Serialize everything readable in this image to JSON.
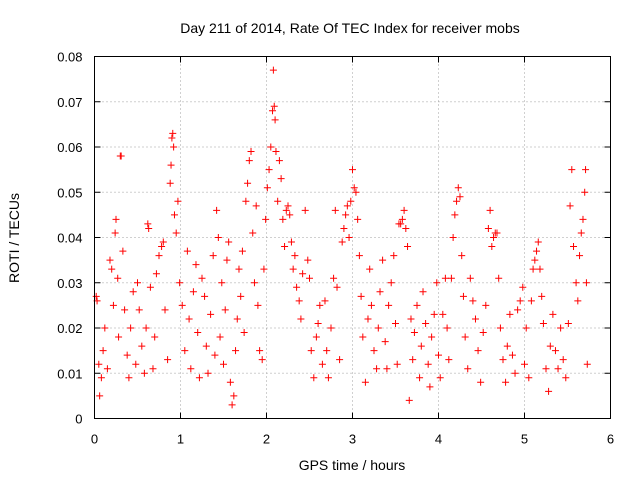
{
  "chart_data": {
    "type": "scatter",
    "title": "Day 211 of 2014, Rate Of TEC Index for receiver mobs",
    "xlabel": "GPS time / hours",
    "ylabel": "ROTI / TECUs",
    "xlim": [
      0,
      6
    ],
    "ylim": [
      0,
      0.08
    ],
    "xticks": [
      0,
      1,
      2,
      3,
      4,
      5,
      6
    ],
    "xtick_labels": [
      "0",
      "1",
      "2",
      "3",
      "4",
      "5",
      "6"
    ],
    "yticks": [
      0,
      0.01,
      0.02,
      0.03,
      0.04,
      0.05,
      0.06,
      0.07,
      0.08
    ],
    "ytick_labels": [
      "0",
      "0.01",
      "0.02",
      "0.03",
      "0.04",
      "0.05",
      "0.06",
      "0.07",
      "0.08"
    ],
    "grid": true,
    "marker": "+",
    "color": "#ff0000",
    "series": [
      {
        "name": "ROTI",
        "points": [
          [
            0.02,
            0.027
          ],
          [
            0.03,
            0.026
          ],
          [
            0.05,
            0.012
          ],
          [
            0.06,
            0.005
          ],
          [
            0.08,
            0.009
          ],
          [
            0.1,
            0.015
          ],
          [
            0.12,
            0.02
          ],
          [
            0.15,
            0.011
          ],
          [
            0.18,
            0.035
          ],
          [
            0.2,
            0.033
          ],
          [
            0.22,
            0.025
          ],
          [
            0.24,
            0.041
          ],
          [
            0.25,
            0.044
          ],
          [
            0.27,
            0.031
          ],
          [
            0.28,
            0.018
          ],
          [
            0.3,
            0.058
          ],
          [
            0.31,
            0.058
          ],
          [
            0.33,
            0.037
          ],
          [
            0.35,
            0.024
          ],
          [
            0.38,
            0.014
          ],
          [
            0.4,
            0.009
          ],
          [
            0.42,
            0.02
          ],
          [
            0.45,
            0.028
          ],
          [
            0.48,
            0.012
          ],
          [
            0.5,
            0.03
          ],
          [
            0.52,
            0.024
          ],
          [
            0.55,
            0.016
          ],
          [
            0.58,
            0.01
          ],
          [
            0.6,
            0.02
          ],
          [
            0.62,
            0.043
          ],
          [
            0.63,
            0.042
          ],
          [
            0.65,
            0.029
          ],
          [
            0.68,
            0.011
          ],
          [
            0.7,
            0.018
          ],
          [
            0.72,
            0.032
          ],
          [
            0.75,
            0.036
          ],
          [
            0.78,
            0.038
          ],
          [
            0.8,
            0.039
          ],
          [
            0.82,
            0.024
          ],
          [
            0.85,
            0.013
          ],
          [
            0.88,
            0.052
          ],
          [
            0.89,
            0.056
          ],
          [
            0.9,
            0.062
          ],
          [
            0.91,
            0.063
          ],
          [
            0.92,
            0.06
          ],
          [
            0.93,
            0.045
          ],
          [
            0.95,
            0.041
          ],
          [
            0.97,
            0.048
          ],
          [
            0.99,
            0.03
          ],
          [
            1.02,
            0.025
          ],
          [
            1.05,
            0.015
          ],
          [
            1.08,
            0.037
          ],
          [
            1.1,
            0.022
          ],
          [
            1.12,
            0.011
          ],
          [
            1.15,
            0.028
          ],
          [
            1.18,
            0.034
          ],
          [
            1.2,
            0.019
          ],
          [
            1.22,
            0.009
          ],
          [
            1.25,
            0.031
          ],
          [
            1.28,
            0.027
          ],
          [
            1.3,
            0.016
          ],
          [
            1.32,
            0.01
          ],
          [
            1.35,
            0.023
          ],
          [
            1.38,
            0.036
          ],
          [
            1.4,
            0.014
          ],
          [
            1.42,
            0.046
          ],
          [
            1.44,
            0.04
          ],
          [
            1.46,
            0.018
          ],
          [
            1.48,
            0.03
          ],
          [
            1.5,
            0.012
          ],
          [
            1.52,
            0.024
          ],
          [
            1.54,
            0.035
          ],
          [
            1.56,
            0.039
          ],
          [
            1.58,
            0.008
          ],
          [
            1.6,
            0.003
          ],
          [
            1.62,
            0.005
          ],
          [
            1.64,
            0.015
          ],
          [
            1.66,
            0.022
          ],
          [
            1.68,
            0.033
          ],
          [
            1.7,
            0.027
          ],
          [
            1.72,
            0.037
          ],
          [
            1.74,
            0.019
          ],
          [
            1.76,
            0.048
          ],
          [
            1.78,
            0.052
          ],
          [
            1.8,
            0.057
          ],
          [
            1.82,
            0.059
          ],
          [
            1.84,
            0.041
          ],
          [
            1.86,
            0.03
          ],
          [
            1.88,
            0.047
          ],
          [
            1.9,
            0.025
          ],
          [
            1.92,
            0.015
          ],
          [
            1.95,
            0.013
          ],
          [
            1.97,
            0.033
          ],
          [
            1.99,
            0.044
          ],
          [
            2.01,
            0.051
          ],
          [
            2.03,
            0.055
          ],
          [
            2.05,
            0.06
          ],
          [
            2.07,
            0.068
          ],
          [
            2.08,
            0.077
          ],
          [
            2.09,
            0.069
          ],
          [
            2.1,
            0.066
          ],
          [
            2.11,
            0.059
          ],
          [
            2.13,
            0.048
          ],
          [
            2.15,
            0.057
          ],
          [
            2.17,
            0.053
          ],
          [
            2.19,
            0.044
          ],
          [
            2.21,
            0.038
          ],
          [
            2.23,
            0.046
          ],
          [
            2.25,
            0.047
          ],
          [
            2.27,
            0.045
          ],
          [
            2.29,
            0.039
          ],
          [
            2.31,
            0.033
          ],
          [
            2.33,
            0.036
          ],
          [
            2.35,
            0.029
          ],
          [
            2.38,
            0.026
          ],
          [
            2.4,
            0.022
          ],
          [
            2.42,
            0.032
          ],
          [
            2.45,
            0.046
          ],
          [
            2.48,
            0.035
          ],
          [
            2.5,
            0.031
          ],
          [
            2.52,
            0.015
          ],
          [
            2.55,
            0.009
          ],
          [
            2.58,
            0.018
          ],
          [
            2.6,
            0.021
          ],
          [
            2.62,
            0.025
          ],
          [
            2.65,
            0.012
          ],
          [
            2.68,
            0.026
          ],
          [
            2.7,
            0.015
          ],
          [
            2.72,
            0.009
          ],
          [
            2.75,
            0.02
          ],
          [
            2.78,
            0.031
          ],
          [
            2.8,
            0.046
          ],
          [
            2.82,
            0.029
          ],
          [
            2.85,
            0.013
          ],
          [
            2.88,
            0.039
          ],
          [
            2.9,
            0.042
          ],
          [
            2.92,
            0.045
          ],
          [
            2.94,
            0.047
          ],
          [
            2.96,
            0.04
          ],
          [
            2.98,
            0.048
          ],
          [
            3.0,
            0.055
          ],
          [
            3.02,
            0.051
          ],
          [
            3.04,
            0.05
          ],
          [
            3.06,
            0.044
          ],
          [
            3.08,
            0.036
          ],
          [
            3.1,
            0.027
          ],
          [
            3.12,
            0.018
          ],
          [
            3.15,
            0.008
          ],
          [
            3.18,
            0.022
          ],
          [
            3.2,
            0.033
          ],
          [
            3.22,
            0.025
          ],
          [
            3.25,
            0.015
          ],
          [
            3.28,
            0.011
          ],
          [
            3.3,
            0.02
          ],
          [
            3.32,
            0.028
          ],
          [
            3.35,
            0.035
          ],
          [
            3.38,
            0.017
          ],
          [
            3.4,
            0.011
          ],
          [
            3.42,
            0.025
          ],
          [
            3.45,
            0.03
          ],
          [
            3.48,
            0.036
          ],
          [
            3.5,
            0.021
          ],
          [
            3.52,
            0.012
          ],
          [
            3.54,
            0.043
          ],
          [
            3.56,
            0.043
          ],
          [
            3.58,
            0.044
          ],
          [
            3.6,
            0.046
          ],
          [
            3.62,
            0.042
          ],
          [
            3.64,
            0.038
          ],
          [
            3.66,
            0.004
          ],
          [
            3.68,
            0.022
          ],
          [
            3.7,
            0.013
          ],
          [
            3.72,
            0.019
          ],
          [
            3.75,
            0.025
          ],
          [
            3.78,
            0.009
          ],
          [
            3.8,
            0.016
          ],
          [
            3.82,
            0.028
          ],
          [
            3.85,
            0.021
          ],
          [
            3.88,
            0.012
          ],
          [
            3.9,
            0.007
          ],
          [
            3.92,
            0.018
          ],
          [
            3.95,
            0.023
          ],
          [
            3.98,
            0.03
          ],
          [
            4.0,
            0.014
          ],
          [
            4.02,
            0.009
          ],
          [
            4.05,
            0.023
          ],
          [
            4.08,
            0.031
          ],
          [
            4.1,
            0.02
          ],
          [
            4.12,
            0.013
          ],
          [
            4.15,
            0.031
          ],
          [
            4.17,
            0.04
          ],
          [
            4.19,
            0.045
          ],
          [
            4.21,
            0.048
          ],
          [
            4.23,
            0.051
          ],
          [
            4.25,
            0.049
          ],
          [
            4.27,
            0.036
          ],
          [
            4.29,
            0.027
          ],
          [
            4.31,
            0.018
          ],
          [
            4.34,
            0.011
          ],
          [
            4.37,
            0.031
          ],
          [
            4.4,
            0.026
          ],
          [
            4.43,
            0.022
          ],
          [
            4.46,
            0.015
          ],
          [
            4.49,
            0.008
          ],
          [
            4.52,
            0.019
          ],
          [
            4.55,
            0.025
          ],
          [
            4.58,
            0.042
          ],
          [
            4.6,
            0.046
          ],
          [
            4.62,
            0.038
          ],
          [
            4.64,
            0.04
          ],
          [
            4.66,
            0.041
          ],
          [
            4.68,
            0.041
          ],
          [
            4.7,
            0.031
          ],
          [
            4.72,
            0.02
          ],
          [
            4.75,
            0.013
          ],
          [
            4.78,
            0.008
          ],
          [
            4.8,
            0.016
          ],
          [
            4.83,
            0.023
          ],
          [
            4.86,
            0.014
          ],
          [
            4.89,
            0.01
          ],
          [
            4.92,
            0.024
          ],
          [
            4.95,
            0.026
          ],
          [
            4.98,
            0.029
          ],
          [
            5.0,
            0.012
          ],
          [
            5.02,
            0.02
          ],
          [
            5.05,
            0.009
          ],
          [
            5.08,
            0.026
          ],
          [
            5.1,
            0.033
          ],
          [
            5.12,
            0.035
          ],
          [
            5.14,
            0.037
          ],
          [
            5.16,
            0.039
          ],
          [
            5.18,
            0.033
          ],
          [
            5.2,
            0.027
          ],
          [
            5.22,
            0.021
          ],
          [
            5.25,
            0.011
          ],
          [
            5.28,
            0.006
          ],
          [
            5.3,
            0.016
          ],
          [
            5.33,
            0.023
          ],
          [
            5.36,
            0.015
          ],
          [
            5.39,
            0.011
          ],
          [
            5.42,
            0.02
          ],
          [
            5.45,
            0.013
          ],
          [
            5.48,
            0.009
          ],
          [
            5.51,
            0.021
          ],
          [
            5.53,
            0.047
          ],
          [
            5.55,
            0.055
          ],
          [
            5.57,
            0.038
          ],
          [
            5.6,
            0.03
          ],
          [
            5.62,
            0.026
          ],
          [
            5.64,
            0.036
          ],
          [
            5.66,
            0.041
          ],
          [
            5.68,
            0.044
          ],
          [
            5.7,
            0.05
          ],
          [
            5.71,
            0.055
          ],
          [
            5.72,
            0.03
          ],
          [
            5.73,
            0.012
          ]
        ]
      }
    ]
  }
}
